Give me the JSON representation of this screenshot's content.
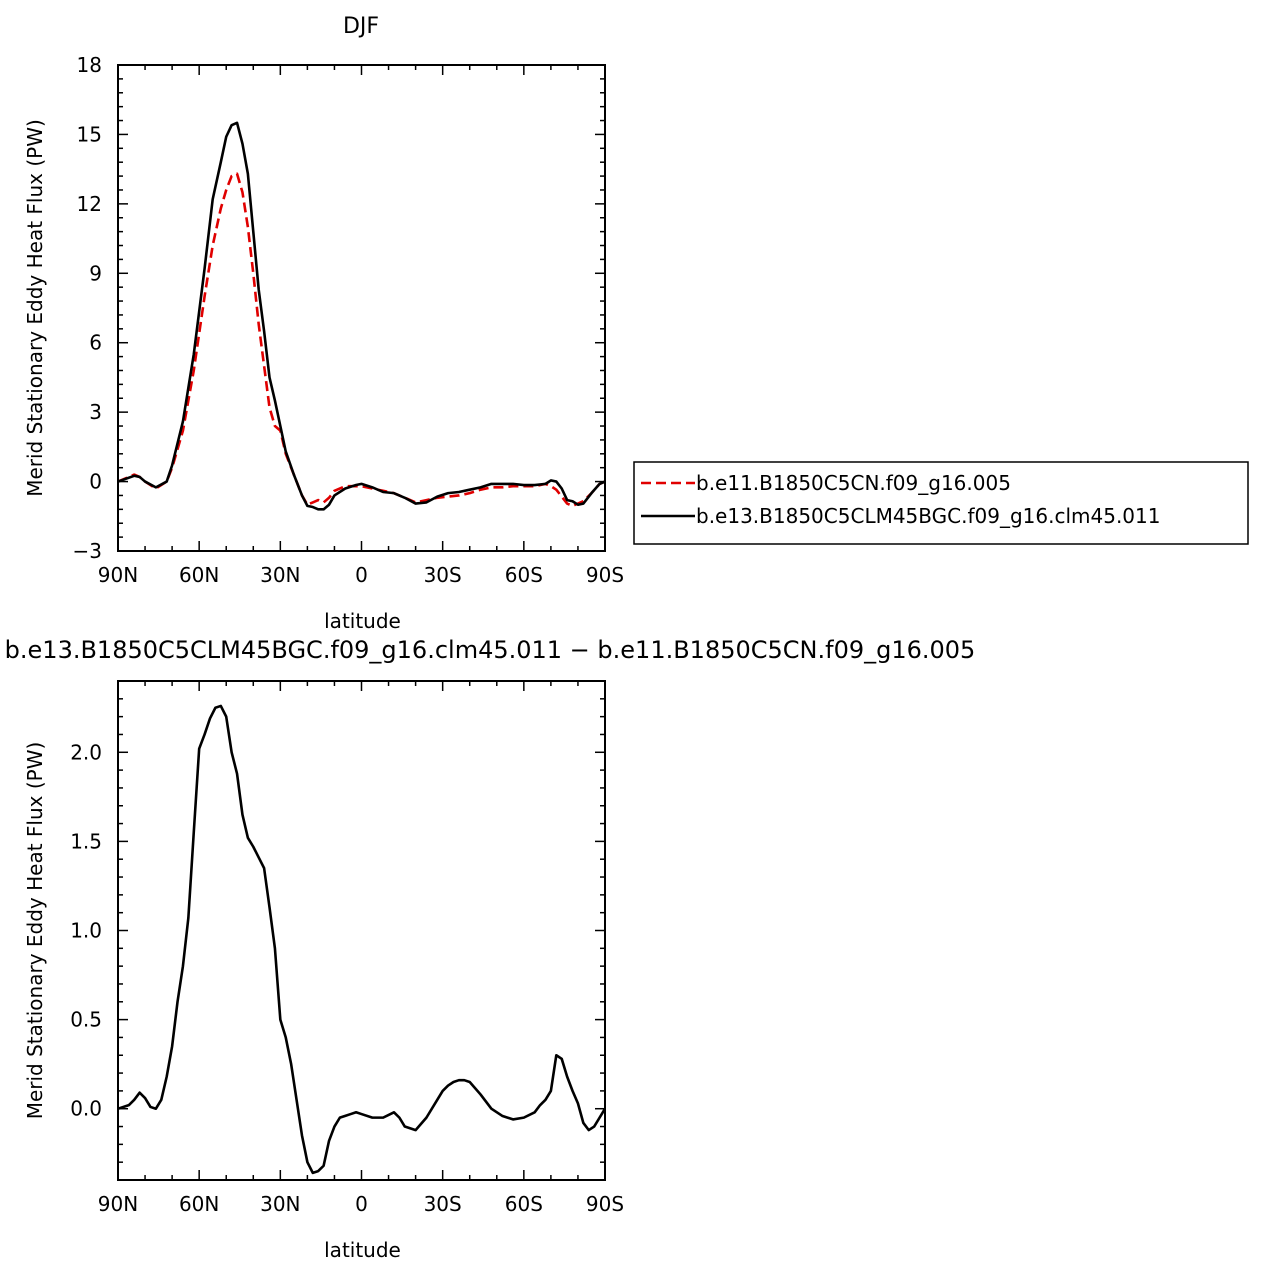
{
  "chart_data": [
    {
      "type": "line",
      "title": "DJF",
      "xlabel": "latitude",
      "ylabel": "Merid Stationary Eddy Heat Flux (PW)",
      "x_ticks": [
        -90,
        -60,
        -30,
        0,
        30,
        60,
        90
      ],
      "x_tick_labels": [
        "90N",
        "60N",
        "30N",
        "0",
        "30S",
        "60S",
        "90S"
      ],
      "xlim": [
        -90,
        90
      ],
      "ylim": [
        -3,
        18
      ],
      "y_ticks": [
        -3,
        0,
        3,
        6,
        9,
        12,
        15,
        18
      ],
      "y_tick_labels": [
        "−3",
        "0",
        "3",
        "6",
        "9",
        "12",
        "15",
        "18"
      ],
      "legend_position": "right",
      "series": [
        {
          "name": "b.e11.B1850C5CN.f09_g16.005",
          "color": "#e00000",
          "dash": "dashed",
          "x": [
            -90,
            -84,
            -82,
            -80,
            -76,
            -72,
            -70,
            -66,
            -62,
            -58,
            -55,
            -52,
            -50,
            -48,
            -46,
            -44,
            -42,
            -40,
            -38,
            -36,
            -34,
            -32,
            -30,
            -28,
            -25,
            -22,
            -20,
            -18,
            -16,
            -14,
            -12,
            -10,
            -6,
            -2,
            0,
            4,
            8,
            12,
            16,
            20,
            24,
            28,
            32,
            36,
            40,
            44,
            48,
            52,
            56,
            60,
            64,
            68,
            70,
            72,
            74,
            76,
            78,
            80,
            82,
            85,
            88,
            90
          ],
          "y": [
            0,
            0.3,
            0.2,
            0.0,
            -0.3,
            0.0,
            0.6,
            2.2,
            4.8,
            8.0,
            10.2,
            11.8,
            12.6,
            13.2,
            13.3,
            12.5,
            11.0,
            9.0,
            6.8,
            5.0,
            3.2,
            2.4,
            2.2,
            1.2,
            0.3,
            -0.6,
            -1.0,
            -0.9,
            -0.8,
            -0.9,
            -0.7,
            -0.4,
            -0.2,
            -0.2,
            -0.2,
            -0.3,
            -0.4,
            -0.5,
            -0.7,
            -0.9,
            -0.8,
            -0.7,
            -0.65,
            -0.6,
            -0.5,
            -0.35,
            -0.25,
            -0.25,
            -0.2,
            -0.2,
            -0.2,
            -0.1,
            -0.2,
            -0.35,
            -0.65,
            -0.95,
            -1.05,
            -0.95,
            -0.85,
            -0.5,
            -0.1,
            0
          ]
        },
        {
          "name": "b.e13.B1850C5CLM45BGC.f09_g16.clm45.011",
          "color": "#000000",
          "dash": "solid",
          "x": [
            -90,
            -84,
            -82,
            -80,
            -76,
            -72,
            -70,
            -66,
            -62,
            -58,
            -55,
            -52,
            -50,
            -48,
            -46,
            -44,
            -42,
            -40,
            -38,
            -36,
            -34,
            -32,
            -30,
            -28,
            -25,
            -22,
            -20,
            -18,
            -16,
            -14,
            -12,
            -10,
            -6,
            -2,
            0,
            4,
            8,
            12,
            16,
            20,
            24,
            28,
            32,
            36,
            40,
            44,
            48,
            52,
            56,
            60,
            64,
            68,
            70,
            72,
            74,
            76,
            78,
            80,
            82,
            85,
            88,
            90
          ],
          "y": [
            0,
            0.25,
            0.2,
            0.0,
            -0.25,
            0.0,
            0.7,
            2.6,
            5.5,
            9.2,
            12.2,
            13.8,
            14.9,
            15.4,
            15.5,
            14.6,
            13.3,
            10.8,
            8.3,
            6.5,
            4.5,
            3.5,
            2.4,
            1.3,
            0.3,
            -0.6,
            -1.05,
            -1.1,
            -1.2,
            -1.2,
            -1.0,
            -0.6,
            -0.3,
            -0.15,
            -0.1,
            -0.25,
            -0.45,
            -0.5,
            -0.7,
            -0.95,
            -0.9,
            -0.65,
            -0.5,
            -0.45,
            -0.35,
            -0.25,
            -0.1,
            -0.1,
            -0.1,
            -0.15,
            -0.15,
            -0.1,
            0.05,
            0.0,
            -0.3,
            -0.8,
            -0.85,
            -1.0,
            -0.95,
            -0.5,
            -0.1,
            0
          ]
        }
      ]
    },
    {
      "type": "line",
      "title": "b.e13.B1850C5CLM45BGC.f09_g16.clm45.011 − b.e11.B1850C5CN.f09_g16.005",
      "xlabel": "latitude",
      "ylabel": "Merid Stationary Eddy Heat Flux (PW)",
      "x_ticks": [
        -90,
        -60,
        -30,
        0,
        30,
        60,
        90
      ],
      "x_tick_labels": [
        "90N",
        "60N",
        "30N",
        "0",
        "30S",
        "60S",
        "90S"
      ],
      "xlim": [
        -90,
        90
      ],
      "ylim": [
        -0.4,
        2.4
      ],
      "y_ticks": [
        0.0,
        0.5,
        1.0,
        1.5,
        2.0
      ],
      "y_tick_labels": [
        "0.0",
        "0.5",
        "1.0",
        "1.5",
        "2.0"
      ],
      "series": [
        {
          "name": "",
          "color": "#000000",
          "dash": "solid",
          "x": [
            -90,
            -86,
            -84,
            -82,
            -80,
            -78,
            -76,
            -74,
            -72,
            -70,
            -68,
            -66,
            -64,
            -62,
            -60,
            -58,
            -56,
            -54,
            -52,
            -50,
            -48,
            -46,
            -44,
            -42,
            -40,
            -38,
            -36,
            -34,
            -32,
            -30,
            -28,
            -26,
            -24,
            -22,
            -20,
            -18,
            -16,
            -14,
            -12,
            -10,
            -8,
            -6,
            -4,
            -2,
            0,
            4,
            8,
            12,
            14,
            16,
            20,
            24,
            28,
            30,
            32,
            34,
            36,
            38,
            40,
            44,
            48,
            52,
            56,
            60,
            64,
            66,
            68,
            70,
            72,
            74,
            76,
            78,
            80,
            82,
            84,
            86,
            88,
            90
          ],
          "y": [
            0.0,
            0.02,
            0.05,
            0.09,
            0.06,
            0.01,
            0.0,
            0.05,
            0.18,
            0.35,
            0.6,
            0.8,
            1.07,
            1.55,
            2.02,
            2.1,
            2.19,
            2.25,
            2.26,
            2.2,
            2.0,
            1.88,
            1.65,
            1.52,
            1.47,
            1.41,
            1.35,
            1.13,
            0.9,
            0.5,
            0.4,
            0.25,
            0.05,
            -0.15,
            -0.3,
            -0.36,
            -0.35,
            -0.32,
            -0.18,
            -0.1,
            -0.05,
            -0.04,
            -0.03,
            -0.02,
            -0.03,
            -0.05,
            -0.05,
            -0.02,
            -0.05,
            -0.1,
            -0.12,
            -0.05,
            0.05,
            0.1,
            0.13,
            0.15,
            0.16,
            0.16,
            0.15,
            0.08,
            0.0,
            -0.04,
            -0.06,
            -0.05,
            -0.02,
            0.02,
            0.05,
            0.1,
            0.3,
            0.28,
            0.18,
            0.1,
            0.03,
            -0.08,
            -0.12,
            -0.1,
            -0.05,
            0.0
          ]
        }
      ]
    }
  ]
}
